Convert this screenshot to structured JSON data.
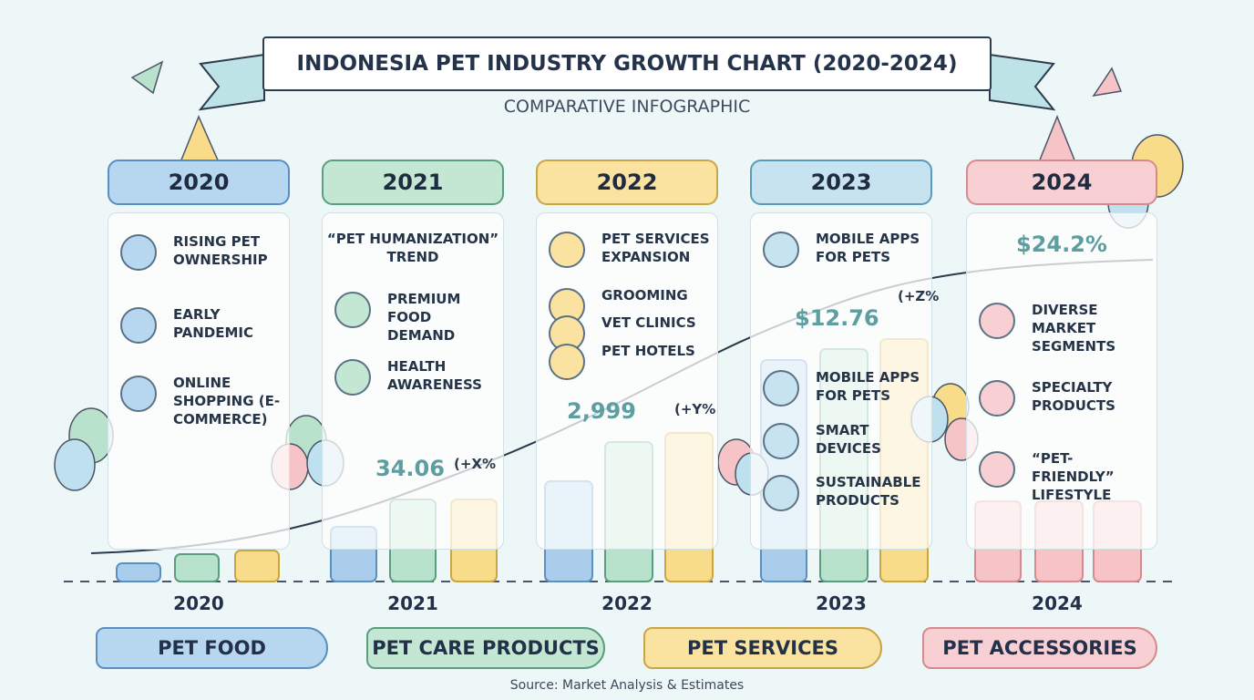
{
  "header": {
    "title": "INDONESIA PET INDUSTRY GROWTH CHART (2020-2024)",
    "subtitle": "COMPARATIVE INFOGRAPHIC"
  },
  "columns": [
    {
      "year": "2020",
      "items": [
        "RISING PET OWNERSHIP",
        "EARLY PANDEMIC",
        "ONLINE SHOPPING (E-COMMERCE)"
      ]
    },
    {
      "year": "2021",
      "items": [
        "“PET HUMANIZATION” TREND",
        "PREMIUM FOOD DEMAND",
        "HEALTH AWARENESS"
      ]
    },
    {
      "year": "2022",
      "items": [
        "PET SERVICES EXPANSION",
        "GROOMING",
        "VET CLINICS",
        "PET HOTELS"
      ]
    },
    {
      "year": "2023",
      "items": [
        "MOBILE APPS FOR PETS",
        "MOBILE APPS FOR PETS",
        "SMART DEVICES",
        "SUSTAINABLE PRODUCTS"
      ]
    },
    {
      "year": "2024",
      "items": [
        "DIVERSE MARKET SEGMENTS",
        "SPECIALTY PRODUCTS",
        "“PET-FRIENDLY” LIFESTYLE"
      ]
    }
  ],
  "annotations": [
    "34.06",
    "(+X%",
    "2,999",
    "(+Y%",
    "$12.76",
    "(+Z%",
    "$24.2%"
  ],
  "axis_years": [
    "2020",
    "2021",
    "2022",
    "2023",
    "2024"
  ],
  "segments": [
    "PET FOOD",
    "PET CARE PRODUCTS",
    "PET SERVICES",
    "PET ACCESSORIES"
  ],
  "source": "Source: Market Analysis & Estimates"
}
